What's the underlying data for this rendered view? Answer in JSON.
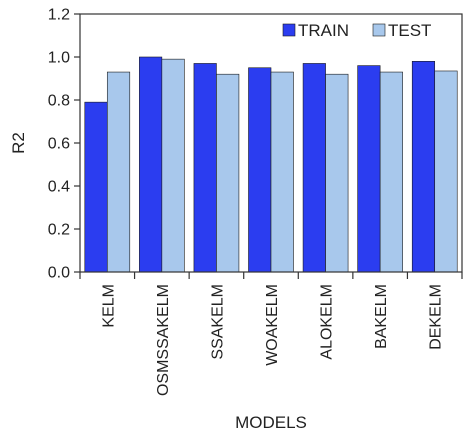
{
  "chart_data": {
    "type": "bar",
    "categories": [
      "KELM",
      "OSMSSAKELM",
      "SSAKELM",
      "WOAKELM",
      "ALOKELM",
      "BAKELM",
      "DEKELM"
    ],
    "series": [
      {
        "name": "TRAIN",
        "values": [
          0.79,
          1.0,
          0.97,
          0.95,
          0.97,
          0.96,
          0.98
        ],
        "color": "#2b3df0"
      },
      {
        "name": "TEST",
        "values": [
          0.93,
          0.99,
          0.92,
          0.93,
          0.92,
          0.93,
          0.935
        ],
        "color": "#a8c8ec"
      }
    ],
    "xlabel": "MODELS",
    "ylabel": "R2",
    "ylim": [
      0,
      1.2
    ],
    "yticks": [
      "0.0",
      "0.2",
      "0.4",
      "0.6",
      "0.8",
      "1.0",
      "1.2"
    ],
    "grid": false,
    "legend_position": "top-right"
  }
}
